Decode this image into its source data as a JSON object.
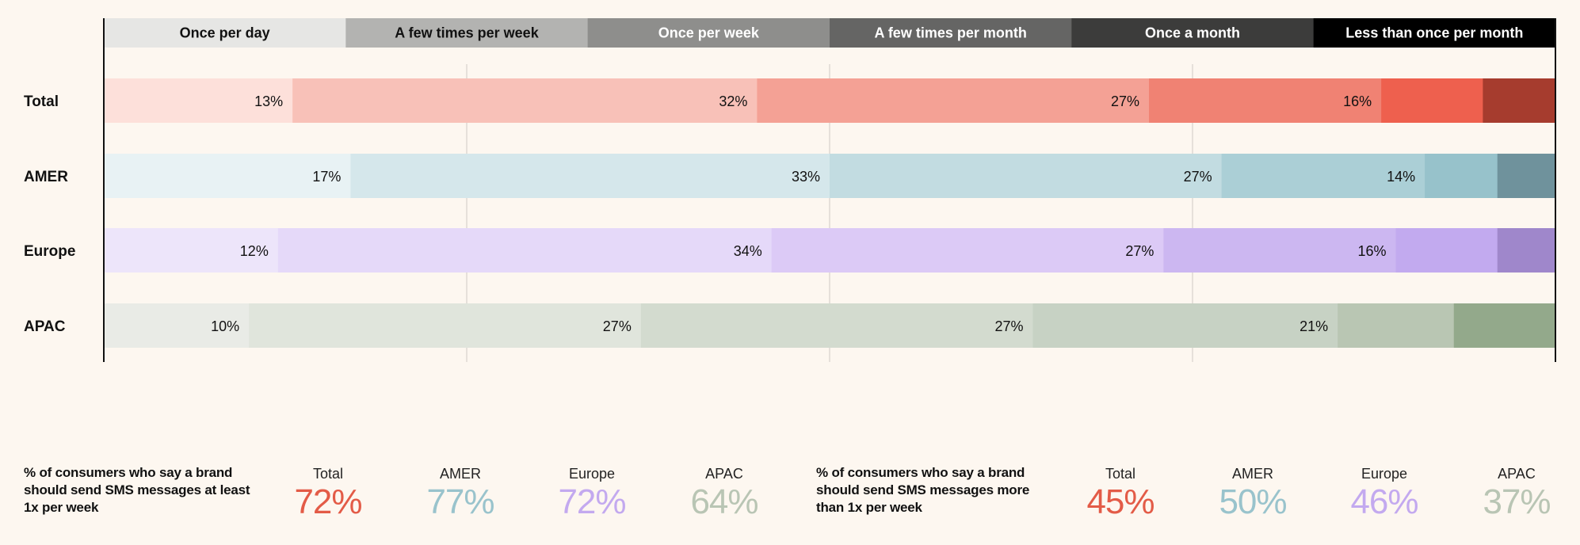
{
  "chart_data": {
    "type": "bar",
    "orientation": "horizontal-stacked-100",
    "stack_labels": [
      "Once per day",
      "A few times per week",
      "Once per week",
      "A few times per month",
      "Once a month",
      "Less than once per month"
    ],
    "categories": [
      "Total",
      "AMER",
      "Europe",
      "APAC"
    ],
    "values": [
      [
        13,
        32,
        27,
        16,
        7,
        3
      ],
      [
        17,
        33,
        27,
        14,
        5,
        2
      ],
      [
        12,
        34,
        27,
        16,
        7,
        3
      ],
      [
        10,
        27,
        27,
        21,
        8,
        5
      ]
    ],
    "segment_labels": [
      [
        "13%",
        "32%",
        "27%",
        "16%",
        "",
        ""
      ],
      [
        "17%",
        "33%",
        "27%",
        "14%",
        "",
        ""
      ],
      [
        "12%",
        "34%",
        "27%",
        "16%",
        "",
        ""
      ],
      [
        "10%",
        "27%",
        "27%",
        "21%",
        "",
        ""
      ]
    ],
    "xlim": [
      0,
      100
    ],
    "x_ticks": [
      "0%",
      "25%",
      "50%",
      "75%",
      "100%"
    ],
    "grid": true,
    "legend_placement": "top",
    "legend_colors": [
      "#e6e6e4",
      "#b3b3b1",
      "#8e8e8c",
      "#656564",
      "#3c3c3b",
      "#000000"
    ],
    "legend_text_colors": [
      "#111111",
      "#111111",
      "#ffffff",
      "#ffffff",
      "#ffffff",
      "#ffffff"
    ],
    "row_colors": [
      [
        "#fde0da",
        "#f8c1b8",
        "#f4a195",
        "#f08273",
        "#ee604e",
        "#a63c2e"
      ],
      [
        "#e8f2f4",
        "#d5e7eb",
        "#c2dce1",
        "#abcfd6",
        "#97c2cb",
        "#6f929c"
      ],
      [
        "#ede5fa",
        "#e5d9f9",
        "#dccaf6",
        "#ccb7f1",
        "#c2aaef",
        "#9f87cb"
      ],
      [
        "#e9ebe6",
        "#e0e5dc",
        "#d3dbcf",
        "#c7d2c4",
        "#b9c6b3",
        "#93a98b"
      ]
    ]
  },
  "summary": {
    "groups": [
      {
        "description": "% of consumers who say a brand should send SMS messages at least 1x per week",
        "stats": [
          {
            "label": "Total",
            "value": "72%",
            "color": "#e35b47"
          },
          {
            "label": "AMER",
            "value": "77%",
            "color": "#99c3cc"
          },
          {
            "label": "Europe",
            "value": "72%",
            "color": "#c3a9ef"
          },
          {
            "label": "APAC",
            "value": "64%",
            "color": "#b9c5b4"
          }
        ]
      },
      {
        "description": "% of consumers who say a brand should send SMS messages more than 1x per week",
        "stats": [
          {
            "label": "Total",
            "value": "45%",
            "color": "#e35b47"
          },
          {
            "label": "AMER",
            "value": "50%",
            "color": "#99c3cc"
          },
          {
            "label": "Europe",
            "value": "46%",
            "color": "#c3a9ef"
          },
          {
            "label": "APAC",
            "value": "37%",
            "color": "#b9c5b4"
          }
        ]
      }
    ]
  }
}
